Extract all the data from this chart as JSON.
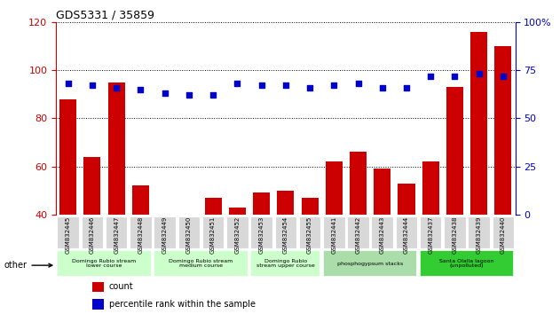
{
  "title": "GDS5331 / 35859",
  "gsm_labels": [
    "GSM832445",
    "GSM832446",
    "GSM832447",
    "GSM832448",
    "GSM832449",
    "GSM832450",
    "GSM832451",
    "GSM832452",
    "GSM832453",
    "GSM832454",
    "GSM832455",
    "GSM832441",
    "GSM832442",
    "GSM832443",
    "GSM832444",
    "GSM832437",
    "GSM832438",
    "GSM832439",
    "GSM832440"
  ],
  "counts": [
    88,
    64,
    95,
    52,
    40,
    40,
    47,
    43,
    49,
    50,
    47,
    62,
    66,
    59,
    53,
    62,
    93,
    116,
    110
  ],
  "percentiles": [
    68,
    67,
    66,
    65,
    63,
    62,
    62,
    68,
    67,
    67,
    66,
    67,
    68,
    66,
    66,
    72,
    72,
    73,
    72
  ],
  "bar_color": "#cc0000",
  "dot_color": "#0000cc",
  "ylim_left": [
    40,
    120
  ],
  "ylim_right": [
    0,
    100
  ],
  "yticks_left": [
    40,
    60,
    80,
    100,
    120
  ],
  "yticks_right": [
    0,
    25,
    50,
    75,
    100
  ],
  "groups": [
    {
      "label": "Domingo Rubio stream\nlower course",
      "start": 0,
      "end": 4,
      "color": "#ccffcc"
    },
    {
      "label": "Domingo Rubio stream\nmedium course",
      "start": 4,
      "end": 8,
      "color": "#ccffcc"
    },
    {
      "label": "Domingo Rubio\nstream upper course",
      "start": 8,
      "end": 11,
      "color": "#ccffcc"
    },
    {
      "label": "phosphogypsum stacks",
      "start": 11,
      "end": 15,
      "color": "#aaddaa"
    },
    {
      "label": "Santa Olalla lagoon\n(unpolluted)",
      "start": 15,
      "end": 19,
      "color": "#33cc33"
    }
  ],
  "other_label": "other",
  "legend_count_label": "count",
  "legend_pct_label": "percentile rank within the sample",
  "plot_bg": "#ffffff"
}
